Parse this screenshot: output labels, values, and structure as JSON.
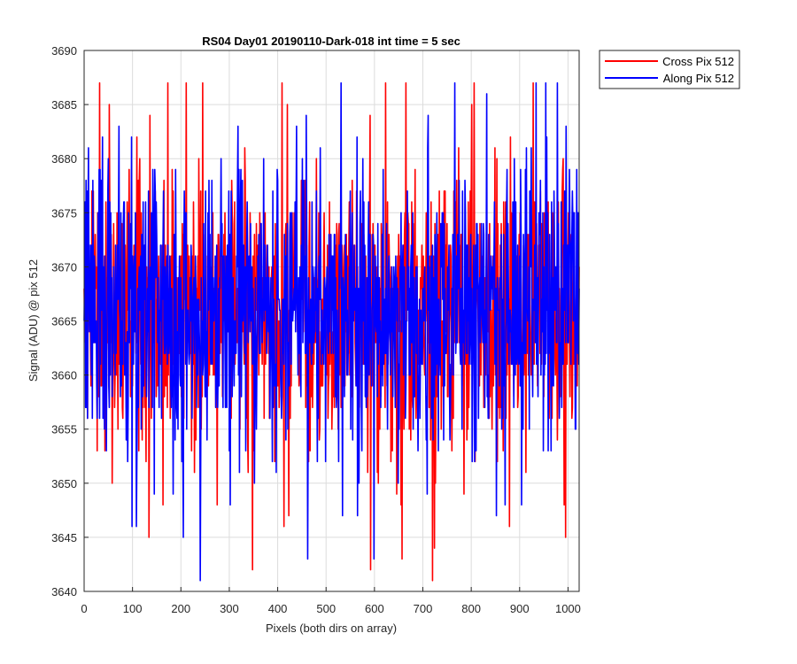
{
  "chart_data": {
    "type": "line",
    "title": "RS04 Day01 20190110-Dark-018 int time = 5 sec",
    "xlabel": "Pixels (both dirs on array)",
    "ylabel": "Signal (ADU) @ pix 512",
    "xlim": [
      0,
      1023
    ],
    "ylim": [
      3640,
      3690
    ],
    "xticks": [
      0,
      100,
      200,
      300,
      400,
      500,
      600,
      700,
      800,
      900,
      1000
    ],
    "yticks": [
      3640,
      3645,
      3650,
      3655,
      3660,
      3665,
      3670,
      3675,
      3680,
      3685,
      3690
    ],
    "grid": true,
    "legend_position": "outside top-right",
    "series": [
      {
        "name": "Cross Pix 512",
        "color": "#ff0000",
        "note_x": "every integer pixel from 0 to 1023",
        "summary": {
          "mean": 3666,
          "min": 3641,
          "max": 3690
        },
        "peaks": [
          {
            "x": 173,
            "y": 3687
          },
          {
            "x": 211,
            "y": 3687
          },
          {
            "x": 409,
            "y": 3687
          },
          {
            "x": 623,
            "y": 3687
          },
          {
            "x": 665,
            "y": 3687
          },
          {
            "x": 928,
            "y": 3687
          },
          {
            "x": 52,
            "y": 3685
          },
          {
            "x": 136,
            "y": 3684
          }
        ],
        "troughs": [
          {
            "x": 720,
            "y": 3641
          },
          {
            "x": 592,
            "y": 3642
          },
          {
            "x": 657,
            "y": 3643
          },
          {
            "x": 724,
            "y": 3644
          },
          {
            "x": 995,
            "y": 3645
          },
          {
            "x": 413,
            "y": 3646
          }
        ]
      },
      {
        "name": "Along Pix 512",
        "color": "#0000ff",
        "note_x": "every integer pixel from 0 to 1023",
        "summary": {
          "mean": 3666,
          "min": 3641,
          "max": 3690
        },
        "peaks": [
          {
            "x": 205,
            "y": 3686
          },
          {
            "x": 766,
            "y": 3687
          },
          {
            "x": 934,
            "y": 3687
          },
          {
            "x": 832,
            "y": 3686
          },
          {
            "x": 459,
            "y": 3684
          }
        ],
        "troughs": [
          {
            "x": 240,
            "y": 3641
          },
          {
            "x": 462,
            "y": 3643
          },
          {
            "x": 205,
            "y": 3645
          },
          {
            "x": 99,
            "y": 3646
          },
          {
            "x": 108,
            "y": 3646
          }
        ]
      }
    ]
  }
}
